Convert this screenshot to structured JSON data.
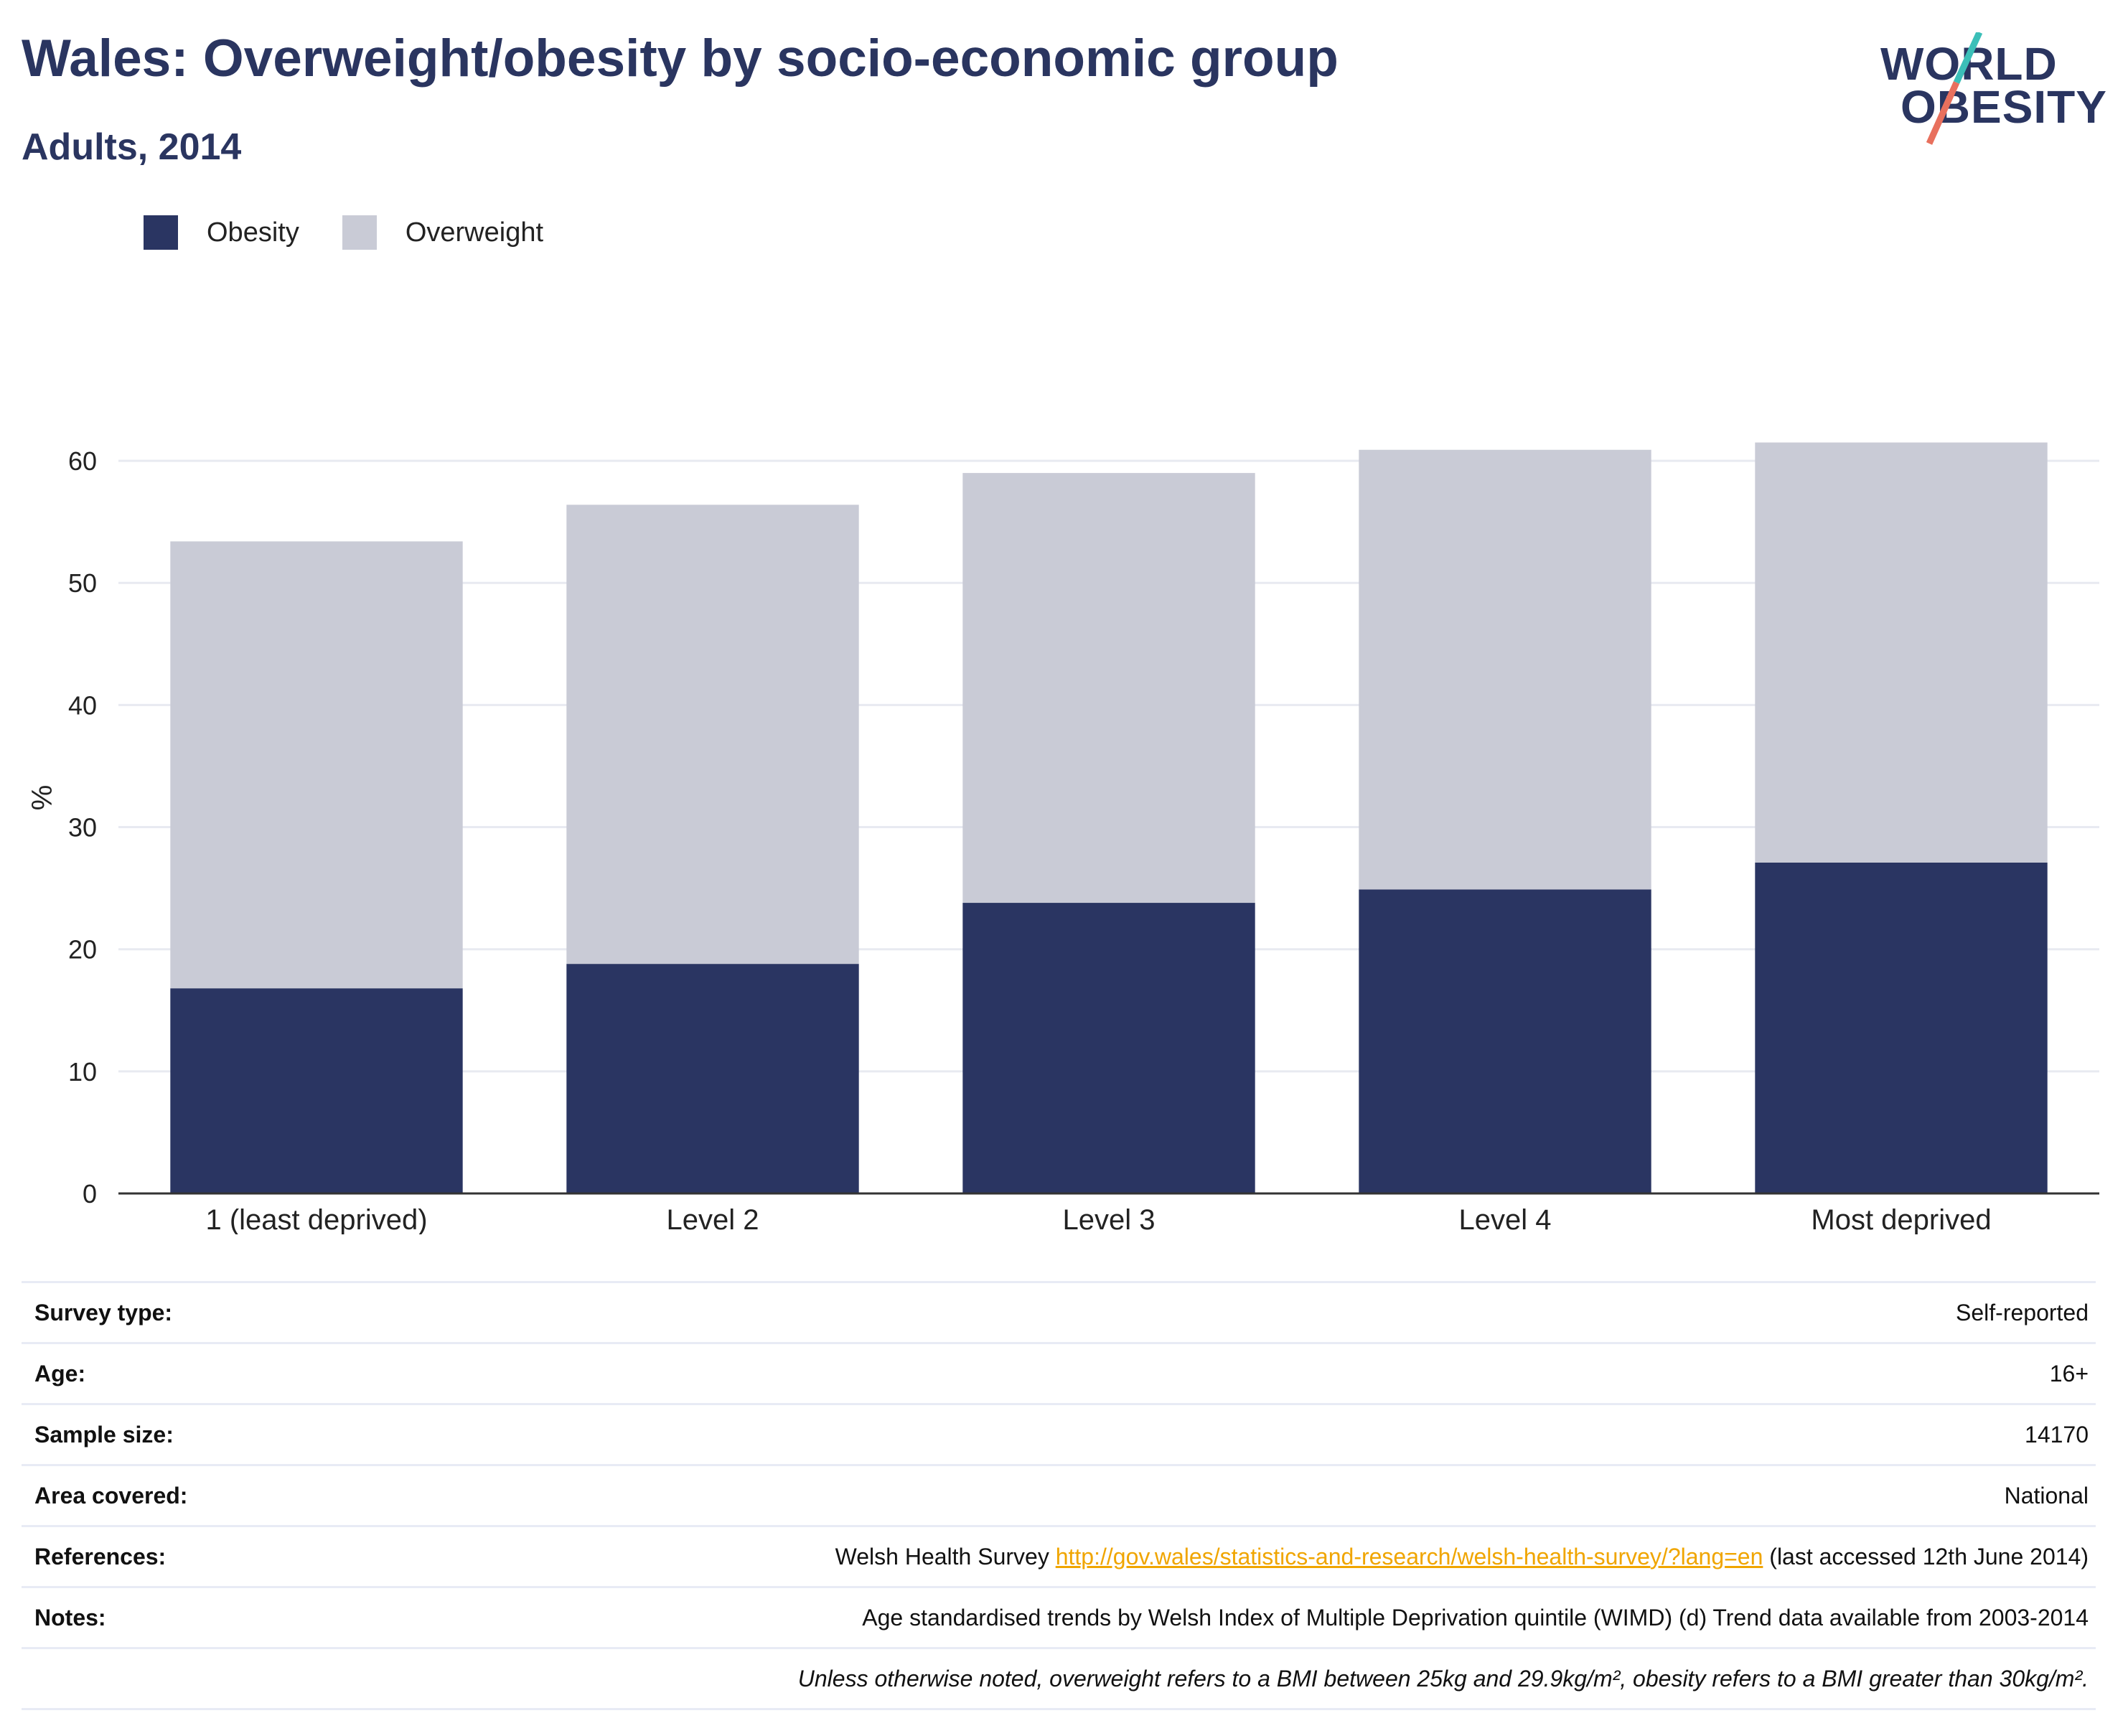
{
  "title": "Wales: Overweight/obesity by socio-economic group",
  "subtitle": "Adults, 2014",
  "logo": {
    "line1": "WORLD",
    "line2": "OBESITY"
  },
  "colors": {
    "obesity": "#2a3562",
    "overweight": "#c9cbd6",
    "title": "#2a3560",
    "link": "#f0a500",
    "logo_teal": "#3bbfb8",
    "logo_coral": "#e8705d"
  },
  "chart_data": {
    "type": "bar",
    "stacked": true,
    "categories": [
      "1 (least deprived)",
      "Level 2",
      "Level 3",
      "Level 4",
      "Most deprived"
    ],
    "series": [
      {
        "name": "Obesity",
        "values": [
          16.8,
          18.8,
          23.8,
          24.9,
          27.1
        ]
      },
      {
        "name": "Overweight",
        "values": [
          36.6,
          37.6,
          35.2,
          36.0,
          34.4
        ]
      }
    ],
    "ylabel": "%",
    "ylim": [
      0,
      66
    ],
    "yticks": [
      0,
      10,
      20,
      30,
      40,
      50,
      60
    ],
    "grid": true,
    "legend": "top-left"
  },
  "info": {
    "survey_type": {
      "label": "Survey type:",
      "value": "Self-reported"
    },
    "age": {
      "label": "Age:",
      "value": "16+"
    },
    "sample_size": {
      "label": "Sample size:",
      "value": "14170"
    },
    "area": {
      "label": "Area covered:",
      "value": "National"
    },
    "references": {
      "label": "References:",
      "prefix": "Welsh Health Survey ",
      "link": "http://gov.wales/statistics-and-research/welsh-health-survey/?lang=en",
      "suffix": " (last accessed 12th June 2014)"
    },
    "notes": {
      "label": "Notes:",
      "value": "Age standardised trends by Welsh Index of Multiple Deprivation quintile (WIMD) (d) Trend data available from 2003-2014"
    },
    "footnote": "Unless otherwise noted, overweight refers to a BMI between 25kg and 29.9kg/m², obesity refers to a BMI greater than 30kg/m²."
  }
}
